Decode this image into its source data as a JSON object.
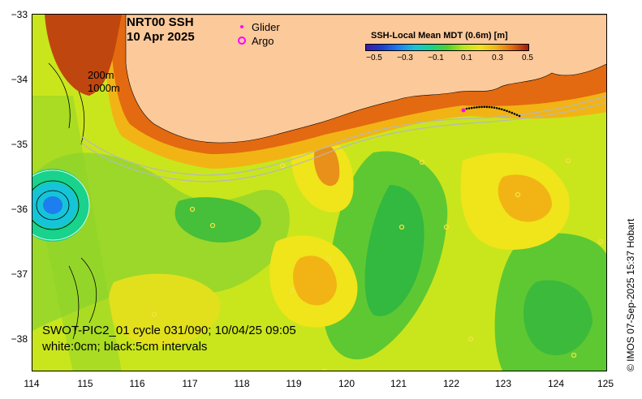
{
  "title": {
    "product": "NRT00 SSH",
    "date": "10 Apr 2025"
  },
  "legend": {
    "glider": "Glider",
    "argo": "Argo",
    "glider_color": "#ff00ff",
    "argo_color": "#ff00ff"
  },
  "isobaths": {
    "shallow": "200m",
    "deep": "1000m"
  },
  "colorbar": {
    "title": "SSH-Local Mean MDT (0.6m) [m]",
    "ticks": [
      "−0.5",
      "−0.3",
      "−0.1",
      "0.1",
      "0.3",
      "0.5"
    ]
  },
  "axes": {
    "x_ticks": [
      "114",
      "115",
      "116",
      "117",
      "118",
      "119",
      "120",
      "121",
      "122",
      "123",
      "124",
      "125"
    ],
    "y_ticks": [
      "−33",
      "−34",
      "−35",
      "−36",
      "−37",
      "−38"
    ],
    "lon_range": [
      114,
      125
    ],
    "lat_range": [
      -38.5,
      -33
    ]
  },
  "swot": {
    "pass": "SWOT-PIC2_01 cycle 031/090; 10/04/25 09:05",
    "contours": "white:0cm; black:5cm intervals"
  },
  "credit": "© IMOS 07-Sep-2025 15:37 Hobart",
  "colors": {
    "land": "#fcc99a",
    "sea_base": "#c9e61c",
    "glider_track": "#000000"
  }
}
